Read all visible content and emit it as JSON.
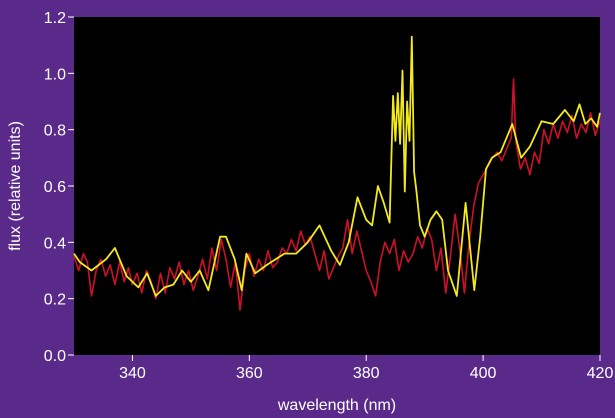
{
  "chart_data": {
    "type": "line",
    "title": "",
    "xlabel": "wavelength (nm)",
    "ylabel": "flux (relative units)",
    "xlim": [
      330,
      420
    ],
    "ylim": [
      0.0,
      1.2
    ],
    "x_ticks": [
      340,
      360,
      380,
      400,
      420
    ],
    "y_ticks": [
      0.0,
      0.2,
      0.4,
      0.6,
      0.8,
      1.0,
      1.2
    ],
    "x_tick_labels": [
      "340",
      "360",
      "380",
      "400",
      "420"
    ],
    "y_tick_labels": [
      "0.0",
      "0.2",
      "0.4",
      "0.6",
      "0.8",
      "1.0",
      "1.2"
    ],
    "grid": false,
    "colors": {
      "outer_background": "#5a2a8a",
      "plot_background": "#000000",
      "axis_text": "#ffffff"
    },
    "series": [
      {
        "color": "#d0102a",
        "x": [
          330.0,
          330.8,
          331.6,
          332.3,
          333.0,
          333.8,
          334.6,
          335.4,
          336.2,
          337.0,
          337.8,
          338.6,
          339.3,
          340.0,
          340.8,
          341.6,
          342.4,
          343.2,
          344.0,
          344.8,
          345.6,
          346.4,
          347.2,
          348.0,
          348.8,
          349.6,
          350.4,
          351.2,
          352.0,
          352.8,
          353.6,
          354.4,
          355.2,
          356.0,
          356.8,
          357.6,
          358.4,
          359.2,
          360.0,
          360.8,
          361.6,
          362.4,
          363.2,
          364.0,
          364.8,
          365.6,
          366.4,
          367.2,
          368.0,
          368.8,
          369.6,
          370.4,
          371.2,
          372.0,
          372.8,
          373.6,
          374.4,
          375.2,
          376.0,
          376.8,
          377.6,
          378.4,
          379.2,
          380.0,
          380.8,
          381.6,
          382.4,
          383.2,
          384.0,
          384.8,
          385.6,
          386.4,
          387.2,
          388.0,
          388.8,
          389.6,
          390.4,
          391.2,
          392.0,
          392.8,
          393.6,
          394.4,
          395.2,
          396.0,
          396.8,
          397.6,
          398.4,
          399.2,
          400.0,
          400.8,
          401.6,
          402.4,
          403.2,
          404.0,
          404.8,
          405.2,
          405.6,
          406.4,
          407.2,
          408.0,
          408.8,
          409.6,
          410.4,
          411.2,
          412.0,
          412.8,
          413.6,
          414.4,
          415.2,
          416.0,
          416.8,
          417.6,
          418.4,
          419.2,
          420.0
        ],
        "values": [
          0.35,
          0.3,
          0.36,
          0.33,
          0.21,
          0.3,
          0.34,
          0.28,
          0.32,
          0.25,
          0.33,
          0.26,
          0.31,
          0.25,
          0.29,
          0.22,
          0.3,
          0.26,
          0.2,
          0.29,
          0.22,
          0.31,
          0.27,
          0.33,
          0.25,
          0.3,
          0.23,
          0.28,
          0.34,
          0.27,
          0.38,
          0.3,
          0.41,
          0.34,
          0.24,
          0.33,
          0.16,
          0.3,
          0.36,
          0.28,
          0.34,
          0.3,
          0.37,
          0.31,
          0.33,
          0.38,
          0.36,
          0.41,
          0.37,
          0.44,
          0.39,
          0.42,
          0.36,
          0.3,
          0.37,
          0.27,
          0.31,
          0.35,
          0.38,
          0.48,
          0.36,
          0.44,
          0.37,
          0.3,
          0.26,
          0.21,
          0.33,
          0.4,
          0.36,
          0.41,
          0.3,
          0.37,
          0.33,
          0.36,
          0.42,
          0.38,
          0.45,
          0.41,
          0.3,
          0.38,
          0.22,
          0.35,
          0.5,
          0.38,
          0.22,
          0.4,
          0.53,
          0.61,
          0.64,
          0.67,
          0.7,
          0.72,
          0.69,
          0.73,
          0.77,
          0.98,
          0.76,
          0.66,
          0.7,
          0.64,
          0.72,
          0.68,
          0.8,
          0.75,
          0.82,
          0.77,
          0.83,
          0.79,
          0.85,
          0.77,
          0.82,
          0.79,
          0.86,
          0.78,
          0.83
        ]
      },
      {
        "color": "#f2ea1a",
        "x": [
          330.0,
          331.0,
          333.0,
          335.5,
          337.0,
          339.0,
          341.0,
          342.5,
          344.0,
          345.5,
          347.0,
          348.5,
          350.0,
          351.5,
          353.0,
          355.0,
          356.0,
          357.5,
          358.7,
          359.5,
          361.0,
          363.0,
          366.0,
          368.0,
          370.0,
          372.0,
          374.0,
          375.5,
          377.0,
          378.5,
          380.0,
          381.0,
          382.0,
          383.0,
          384.0,
          384.6,
          385.0,
          385.4,
          385.8,
          386.2,
          386.6,
          387.0,
          387.4,
          387.8,
          388.2,
          388.6,
          389.2,
          390.0,
          391.0,
          392.0,
          393.0,
          394.0,
          395.5,
          397.0,
          398.5,
          399.5,
          400.5,
          401.5,
          403.0,
          405.0,
          406.5,
          408.0,
          410.0,
          412.0,
          414.0,
          415.5,
          416.5,
          417.5,
          418.5,
          419.5,
          420.0
        ],
        "values": [
          0.36,
          0.33,
          0.3,
          0.34,
          0.38,
          0.28,
          0.24,
          0.29,
          0.21,
          0.24,
          0.25,
          0.3,
          0.26,
          0.3,
          0.23,
          0.42,
          0.42,
          0.34,
          0.23,
          0.36,
          0.29,
          0.32,
          0.36,
          0.36,
          0.4,
          0.46,
          0.37,
          0.32,
          0.4,
          0.56,
          0.48,
          0.46,
          0.6,
          0.54,
          0.47,
          0.92,
          0.76,
          0.93,
          0.75,
          1.01,
          0.58,
          0.9,
          0.76,
          1.13,
          0.65,
          0.58,
          0.46,
          0.42,
          0.48,
          0.51,
          0.48,
          0.3,
          0.21,
          0.54,
          0.23,
          0.42,
          0.66,
          0.7,
          0.72,
          0.82,
          0.7,
          0.74,
          0.83,
          0.82,
          0.87,
          0.83,
          0.89,
          0.82,
          0.84,
          0.81,
          0.86
        ]
      }
    ]
  }
}
